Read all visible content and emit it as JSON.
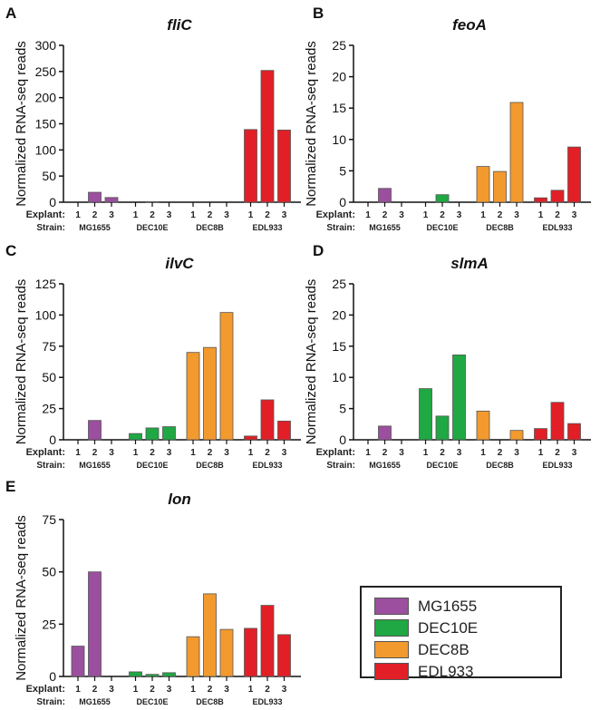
{
  "chart_data": [
    {
      "panel": "A",
      "type": "bar",
      "title": "fliC",
      "ylabel": "Normalized RNA-seq reads",
      "ylim": [
        0,
        300
      ],
      "yticks": [
        0,
        50,
        100,
        150,
        200,
        250,
        300
      ],
      "explant_label": "Explant:",
      "strain_label": "Strain:",
      "groups": [
        {
          "strain": "MG1655",
          "explants": [
            "1",
            "2",
            "3"
          ],
          "values": [
            0,
            19,
            9
          ]
        },
        {
          "strain": "DEC10E",
          "explants": [
            "1",
            "2",
            "3"
          ],
          "values": [
            0,
            1,
            0
          ]
        },
        {
          "strain": "DEC8B",
          "explants": [
            "1",
            "2",
            "3"
          ],
          "values": [
            0,
            0,
            0
          ]
        },
        {
          "strain": "EDL933",
          "explants": [
            "1",
            "2",
            "3"
          ],
          "values": [
            139,
            252,
            138
          ]
        }
      ]
    },
    {
      "panel": "B",
      "type": "bar",
      "title": "feoA",
      "ylabel": "Normalized RNA-seq reads",
      "ylim": [
        0,
        25
      ],
      "yticks": [
        0,
        5,
        10,
        15,
        20,
        25
      ],
      "explant_label": "Explant:",
      "strain_label": "Strain:",
      "groups": [
        {
          "strain": "MG1655",
          "explants": [
            "1",
            "2",
            "3"
          ],
          "values": [
            0,
            2.2,
            0
          ]
        },
        {
          "strain": "DEC10E",
          "explants": [
            "1",
            "2",
            "3"
          ],
          "values": [
            0,
            1.2,
            0
          ]
        },
        {
          "strain": "DEC8B",
          "explants": [
            "1",
            "2",
            "3"
          ],
          "values": [
            5.7,
            4.9,
            15.9
          ]
        },
        {
          "strain": "EDL933",
          "explants": [
            "1",
            "2",
            "3"
          ],
          "values": [
            0.7,
            1.9,
            8.8
          ]
        }
      ]
    },
    {
      "panel": "C",
      "type": "bar",
      "title": "ilvC",
      "ylabel": "Normalized RNA-seq reads",
      "ylim": [
        0,
        125
      ],
      "yticks": [
        0,
        25,
        50,
        75,
        100,
        125
      ],
      "explant_label": "Explant:",
      "strain_label": "Strain:",
      "groups": [
        {
          "strain": "MG1655",
          "explants": [
            "1",
            "2",
            "3"
          ],
          "values": [
            0,
            15.5,
            0
          ]
        },
        {
          "strain": "DEC10E",
          "explants": [
            "1",
            "2",
            "3"
          ],
          "values": [
            5,
            9.5,
            10.5
          ]
        },
        {
          "strain": "DEC8B",
          "explants": [
            "1",
            "2",
            "3"
          ],
          "values": [
            70,
            74,
            102
          ]
        },
        {
          "strain": "EDL933",
          "explants": [
            "1",
            "2",
            "3"
          ],
          "values": [
            3,
            32,
            15
          ]
        }
      ]
    },
    {
      "panel": "D",
      "type": "bar",
      "title": "slmA",
      "ylabel": "Normalized RNA-seq reads",
      "ylim": [
        0,
        25
      ],
      "yticks": [
        0,
        5,
        10,
        15,
        20,
        25
      ],
      "explant_label": "Explant:",
      "strain_label": "Strain:",
      "groups": [
        {
          "strain": "MG1655",
          "explants": [
            "1",
            "2",
            "3"
          ],
          "values": [
            0,
            2.2,
            0
          ]
        },
        {
          "strain": "DEC10E",
          "explants": [
            "1",
            "2",
            "3"
          ],
          "values": [
            8.2,
            3.8,
            13.6
          ]
        },
        {
          "strain": "DEC8B",
          "explants": [
            "1",
            "2",
            "3"
          ],
          "values": [
            4.6,
            0,
            1.5
          ]
        },
        {
          "strain": "EDL933",
          "explants": [
            "1",
            "2",
            "3"
          ],
          "values": [
            1.8,
            6,
            2.6
          ]
        }
      ]
    },
    {
      "panel": "E",
      "type": "bar",
      "title": "lon",
      "ylabel": "Normalized RNA-seq reads",
      "ylim": [
        0,
        75
      ],
      "yticks": [
        0,
        25,
        50,
        75
      ],
      "explant_label": "Explant:",
      "strain_label": "Strain:",
      "groups": [
        {
          "strain": "MG1655",
          "explants": [
            "1",
            "2",
            "3"
          ],
          "values": [
            14.5,
            50,
            0
          ]
        },
        {
          "strain": "DEC10E",
          "explants": [
            "1",
            "2",
            "3"
          ],
          "values": [
            2.2,
            1,
            1.8
          ]
        },
        {
          "strain": "DEC8B",
          "explants": [
            "1",
            "2",
            "3"
          ],
          "values": [
            19,
            39.5,
            22.5
          ]
        },
        {
          "strain": "EDL933",
          "explants": [
            "1",
            "2",
            "3"
          ],
          "values": [
            23,
            34,
            20
          ]
        }
      ]
    }
  ],
  "legend": [
    {
      "label": "MG1655",
      "color": "#9b4f9e"
    },
    {
      "label": "DEC10E",
      "color": "#1fa843"
    },
    {
      "label": "DEC8B",
      "color": "#f29a2e"
    },
    {
      "label": "EDL933",
      "color": "#e21f26"
    }
  ]
}
